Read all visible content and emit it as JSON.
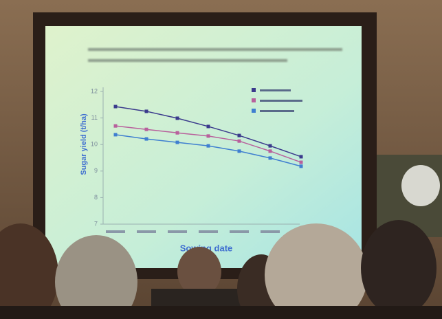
{
  "chart_data": {
    "type": "line",
    "x_label": "Sowing date",
    "y_label": "Sugar yield (t/ha)",
    "categories": [
      null,
      null,
      null,
      null,
      null,
      null,
      null
    ],
    "series": [
      {
        "color": "#3a3a8c",
        "values": [
          11.43,
          11.25,
          10.99,
          10.68,
          10.34,
          9.95,
          9.54
        ]
      },
      {
        "color": "#b8609c",
        "values": [
          10.7,
          10.57,
          10.44,
          10.32,
          10.13,
          9.75,
          9.33
        ]
      },
      {
        "color": "#3f7fd0",
        "values": [
          10.37,
          10.21,
          10.08,
          9.95,
          9.75,
          9.49,
          9.18
        ]
      }
    ],
    "ylim": [
      7,
      12
    ],
    "yticks": [
      7,
      8,
      9,
      10,
      11,
      12
    ]
  }
}
